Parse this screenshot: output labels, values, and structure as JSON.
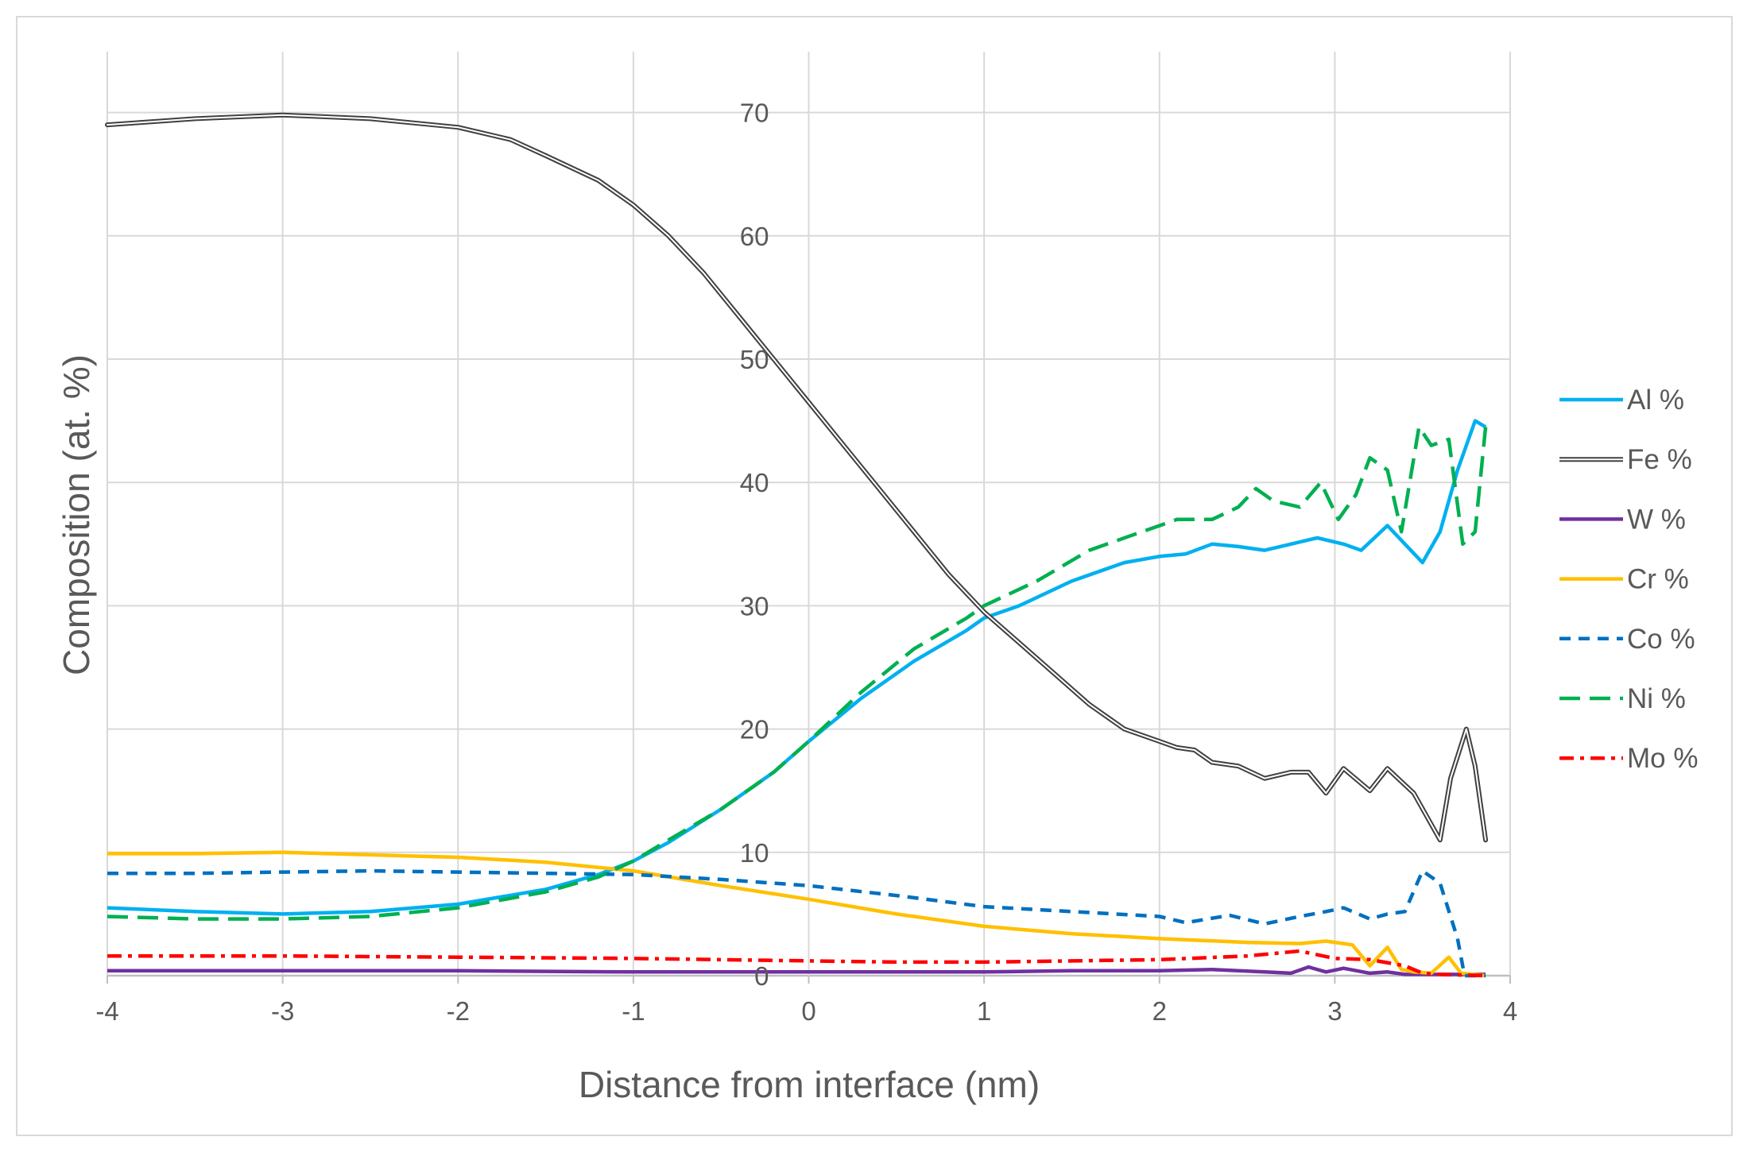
{
  "chart_data": {
    "type": "line",
    "title": "",
    "xlabel": "Distance from interface (nm)",
    "ylabel": "Composition (at. %)",
    "xlim": [
      -4,
      4
    ],
    "ylim": [
      0,
      75
    ],
    "xticks": [
      -4,
      -3,
      -2,
      -1,
      0,
      1,
      2,
      3,
      4
    ],
    "yticks": [
      0,
      10,
      20,
      30,
      40,
      50,
      60,
      70
    ],
    "grid": true,
    "legend_position": "right",
    "series": [
      {
        "name": "Al %",
        "color": "#00b0f0",
        "style": "solid",
        "x": [
          -4,
          -3.5,
          -3,
          -2.5,
          -2,
          -1.5,
          -1.2,
          -1,
          -0.8,
          -0.5,
          -0.2,
          0,
          0.3,
          0.6,
          0.9,
          1,
          1.2,
          1.5,
          1.8,
          2,
          2.15,
          2.3,
          2.45,
          2.6,
          2.75,
          2.9,
          3.05,
          3.15,
          3.3,
          3.4,
          3.5,
          3.6,
          3.7,
          3.8,
          3.86
        ],
        "y": [
          5.5,
          5.2,
          5.0,
          5.2,
          5.8,
          7.0,
          8.2,
          9.3,
          10.8,
          13.5,
          16.5,
          19.0,
          22.5,
          25.5,
          28.0,
          29.0,
          30.0,
          32.0,
          33.5,
          34.0,
          34.2,
          35.0,
          34.8,
          34.5,
          35.0,
          35.5,
          35.0,
          34.5,
          36.5,
          35.0,
          33.5,
          36.0,
          41.0,
          45.0,
          44.5
        ]
      },
      {
        "name": "Fe %",
        "color": "#404040",
        "style": "double",
        "x": [
          -4,
          -3.5,
          -3,
          -2.5,
          -2,
          -1.7,
          -1.5,
          -1.2,
          -1,
          -0.8,
          -0.6,
          -0.4,
          -0.2,
          0,
          0.2,
          0.4,
          0.6,
          0.8,
          1,
          1.2,
          1.4,
          1.6,
          1.8,
          2,
          2.1,
          2.2,
          2.3,
          2.45,
          2.6,
          2.75,
          2.85,
          2.95,
          3.05,
          3.2,
          3.3,
          3.45,
          3.6,
          3.66,
          3.75,
          3.8,
          3.86
        ],
        "y": [
          69.0,
          69.5,
          69.8,
          69.5,
          68.8,
          67.8,
          66.5,
          64.5,
          62.5,
          60.0,
          57.0,
          53.5,
          50.0,
          46.5,
          43.0,
          39.5,
          36.0,
          32.5,
          29.5,
          27.0,
          24.5,
          22.0,
          20.0,
          19.0,
          18.5,
          18.3,
          17.3,
          17.0,
          16.0,
          16.5,
          16.5,
          14.8,
          16.8,
          15.0,
          16.8,
          14.8,
          11.0,
          16.0,
          20.0,
          17.0,
          11.0
        ]
      },
      {
        "name": "W %",
        "color": "#7030a0",
        "style": "solid",
        "x": [
          -4,
          -3,
          -2,
          -1,
          0,
          1,
          1.5,
          2,
          2.3,
          2.6,
          2.75,
          2.85,
          2.95,
          3.05,
          3.2,
          3.3,
          3.4,
          3.6,
          3.86
        ],
        "y": [
          0.4,
          0.4,
          0.4,
          0.3,
          0.3,
          0.3,
          0.4,
          0.4,
          0.5,
          0.3,
          0.2,
          0.7,
          0.3,
          0.6,
          0.2,
          0.3,
          0.1,
          0.1,
          0.1
        ]
      },
      {
        "name": "Cr %",
        "color": "#ffc000",
        "style": "solid",
        "x": [
          -4,
          -3.5,
          -3,
          -2.5,
          -2,
          -1.5,
          -1,
          -0.5,
          0,
          0.5,
          1,
          1.5,
          2,
          2.5,
          2.8,
          2.95,
          3.1,
          3.2,
          3.3,
          3.38,
          3.45,
          3.55,
          3.65,
          3.72,
          3.86
        ],
        "y": [
          9.9,
          9.9,
          10.0,
          9.8,
          9.6,
          9.2,
          8.5,
          7.3,
          6.2,
          5.0,
          4.0,
          3.4,
          3.0,
          2.7,
          2.6,
          2.8,
          2.5,
          0.8,
          2.3,
          0.5,
          0.3,
          0.2,
          1.5,
          0.2,
          0.0
        ]
      },
      {
        "name": "Co %",
        "color": "#0070c0",
        "style": "dash",
        "x": [
          -4,
          -3.5,
          -3,
          -2.5,
          -2,
          -1.5,
          -1,
          -0.5,
          0,
          0.5,
          1,
          1.5,
          2,
          2.15,
          2.4,
          2.6,
          2.8,
          2.95,
          3.05,
          3.2,
          3.3,
          3.4,
          3.5,
          3.6,
          3.7,
          3.74,
          3.86
        ],
        "y": [
          8.3,
          8.3,
          8.4,
          8.5,
          8.4,
          8.3,
          8.2,
          7.8,
          7.3,
          6.5,
          5.6,
          5.2,
          4.8,
          4.3,
          4.9,
          4.2,
          4.8,
          5.2,
          5.5,
          4.6,
          5.0,
          5.2,
          8.5,
          7.5,
          3.0,
          0.0,
          0.0
        ]
      },
      {
        "name": "Ni %",
        "color": "#00b050",
        "style": "longdash",
        "x": [
          -4,
          -3.5,
          -3,
          -2.5,
          -2,
          -1.5,
          -1.2,
          -1,
          -0.8,
          -0.5,
          -0.2,
          0,
          0.3,
          0.6,
          0.9,
          1,
          1.3,
          1.6,
          1.9,
          2.1,
          2.3,
          2.45,
          2.55,
          2.65,
          2.8,
          2.92,
          3.02,
          3.12,
          3.2,
          3.3,
          3.38,
          3.48,
          3.55,
          3.65,
          3.73,
          3.8,
          3.86
        ],
        "y": [
          4.8,
          4.6,
          4.6,
          4.8,
          5.5,
          6.8,
          8.0,
          9.3,
          11.0,
          13.5,
          16.5,
          19.0,
          23.0,
          26.5,
          29.0,
          30.0,
          32.0,
          34.5,
          36.0,
          37.0,
          37.0,
          38.0,
          39.5,
          38.5,
          38.0,
          40.0,
          37.0,
          39.0,
          42.0,
          41.0,
          36.0,
          44.5,
          43.0,
          43.5,
          35.0,
          36.0,
          44.5
        ]
      },
      {
        "name": "Mo %",
        "color": "#ff0000",
        "style": "dashdot",
        "x": [
          -4,
          -3,
          -2,
          -1,
          0,
          0.5,
          1,
          1.5,
          2,
          2.5,
          2.8,
          3,
          3.2,
          3.4,
          3.5,
          3.6,
          3.86
        ],
        "y": [
          1.6,
          1.6,
          1.5,
          1.4,
          1.2,
          1.1,
          1.1,
          1.2,
          1.3,
          1.6,
          2.0,
          1.4,
          1.3,
          0.8,
          0.2,
          0.1,
          0.0
        ]
      }
    ]
  }
}
